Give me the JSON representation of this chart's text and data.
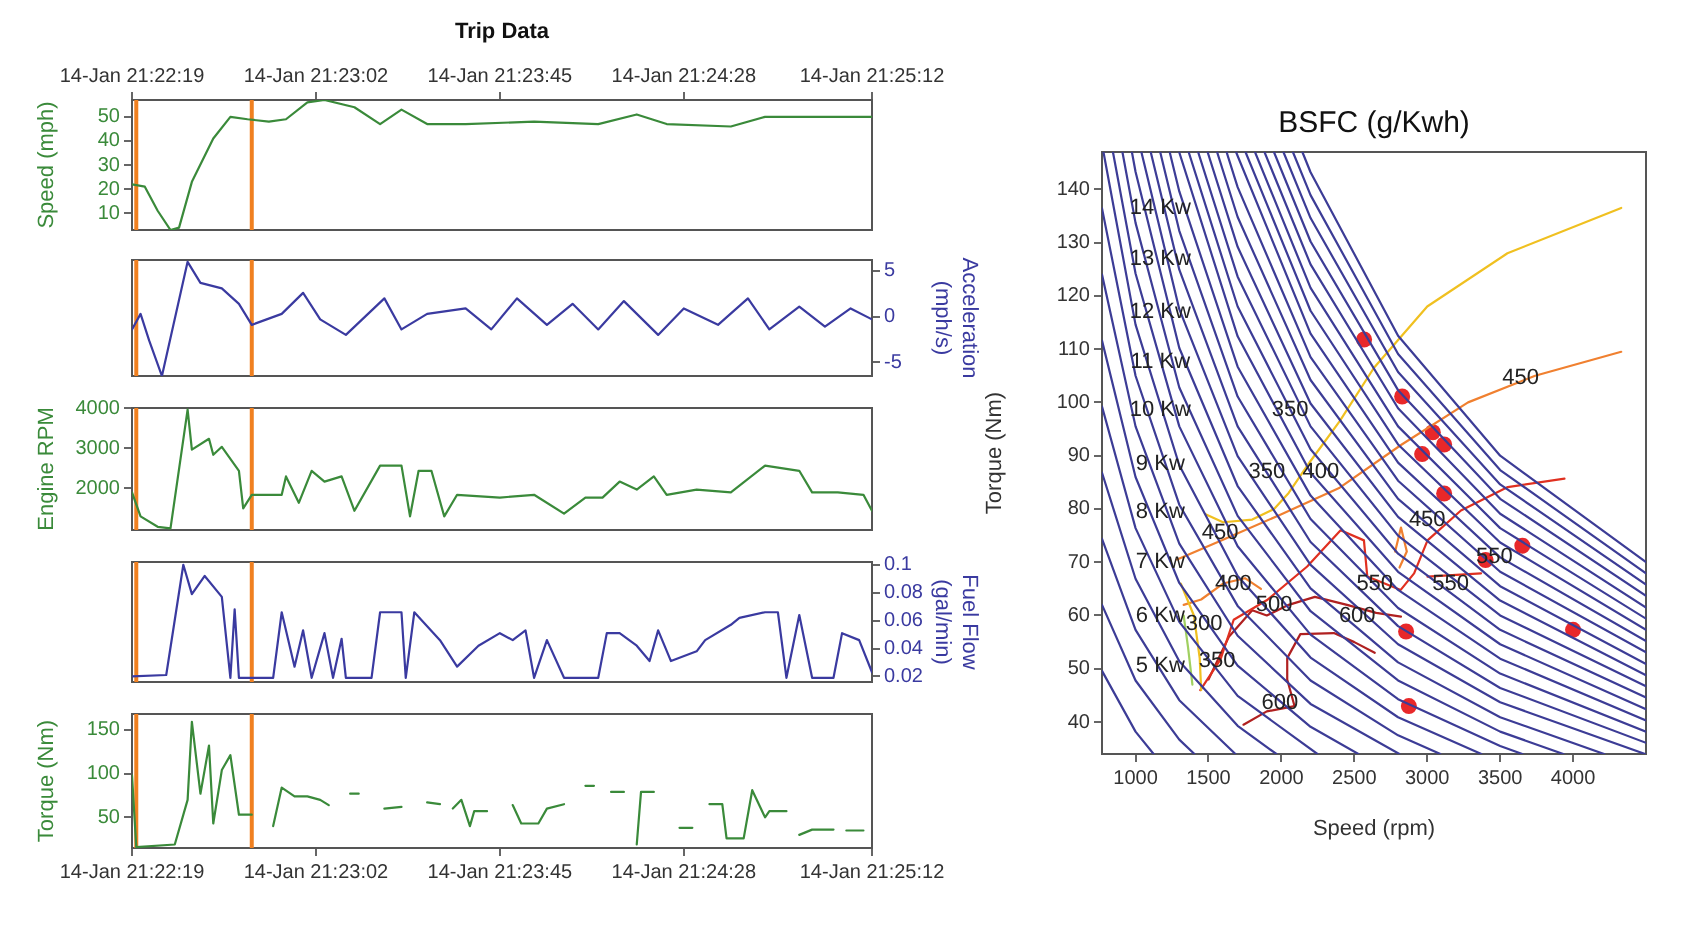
{
  "chart_data": [
    {
      "type": "line",
      "title": "Trip Data",
      "ylabel": "Speed (mph)",
      "xlim": [
        "--01-14T21:22:19",
        "--01-14T21:25:12"
      ],
      "x2lim": [
        "--01-14T21:22:19",
        "--01-14T21:25:12"
      ],
      "x2ticks": [
        {
          "value": "--01-14T21:22:19",
          "label": "14-Jan 21:22:19"
        },
        {
          "value": "--01-14T21:23:02",
          "label": "14-Jan 21:23:02"
        },
        {
          "value": "--01-14T21:23:45",
          "label": "14-Jan 21:23:45"
        },
        {
          "value": "--01-14T21:24:28",
          "label": "14-Jan 21:24:28"
        },
        {
          "value": "--01-14T21:25:12",
          "label": "14-Jan 21:25:12"
        }
      ],
      "ylim": [
        3,
        57
      ],
      "yticks": [
        10,
        20,
        30,
        40,
        50
      ],
      "ref_lines": [
        {
          "axis": "x",
          "value": "--01-14T21:22:20",
          "color": "#f08020"
        },
        {
          "axis": "x",
          "value": "--01-14T21:22:47",
          "color": "#f08020"
        }
      ],
      "x": [
        "--01-14T21:22:19",
        "--01-14T21:22:22",
        "--01-14T21:22:25",
        "--01-14T21:22:28",
        "--01-14T21:22:30",
        "--01-14T21:22:33",
        "--01-14T21:22:38",
        "--01-14T21:22:42",
        "--01-14T21:22:46",
        "--01-14T21:22:51",
        "--01-14T21:22:55",
        "--01-14T21:23:00",
        "--01-14T21:23:04",
        "--01-14T21:23:11",
        "--01-14T21:23:17",
        "--01-14T21:23:22",
        "--01-14T21:23:28",
        "--01-14T21:23:37",
        "--01-14T21:23:53",
        "--01-14T21:24:08",
        "--01-14T21:24:17",
        "--01-14T21:24:24",
        "--01-14T21:24:39",
        "--01-14T21:24:47",
        "--01-14T21:24:55",
        "--01-14T21:25:02",
        "--01-14T21:25:12"
      ],
      "series": [
        {
          "color": "#3a8a3a",
          "values": [
            22,
            21,
            11,
            3,
            4,
            23,
            41,
            50,
            49,
            48,
            49,
            56,
            57,
            54,
            47,
            53,
            47,
            47,
            48,
            47,
            51,
            47,
            46,
            50,
            50,
            50,
            50
          ]
        }
      ]
    },
    {
      "type": "line",
      "y2label": "Acceleration (mph/s)",
      "xlim": [
        "--01-14T21:22:19",
        "--01-14T21:25:12"
      ],
      "tick_labels": "y",
      "y2lim": [
        -6.5,
        6.2
      ],
      "y2ticks": [
        -5,
        0,
        5
      ],
      "ref_lines": [
        {
          "axis": "x",
          "value": "--01-14T21:22:20",
          "color": "#f08020"
        },
        {
          "axis": "x",
          "value": "--01-14T21:22:47",
          "color": "#f08020"
        }
      ],
      "x": [
        "--01-14T21:22:19",
        "--01-14T21:22:21",
        "--01-14T21:22:23",
        "--01-14T21:22:26",
        "--01-14T21:22:32",
        "--01-14T21:22:35",
        "--01-14T21:22:40",
        "--01-14T21:22:44",
        "--01-14T21:22:47",
        "--01-14T21:22:54",
        "--01-14T21:22:59",
        "--01-14T21:23:03",
        "--01-14T21:23:09",
        "--01-14T21:23:18",
        "--01-14T21:23:22",
        "--01-14T21:23:28",
        "--01-14T21:23:37",
        "--01-14T21:23:43",
        "--01-14T21:23:49",
        "--01-14T21:23:56",
        "--01-14T21:24:02",
        "--01-14T21:24:08",
        "--01-14T21:24:14",
        "--01-14T21:24:22",
        "--01-14T21:24:28",
        "--01-14T21:24:36",
        "--01-14T21:24:43",
        "--01-14T21:24:48",
        "--01-14T21:24:55",
        "--01-14T21:25:01",
        "--01-14T21:25:07",
        "--01-14T21:25:12"
      ],
      "series": [
        {
          "color": "#3a3aa0",
          "axis": "y2",
          "values": [
            -1.4,
            0.3,
            -2.6,
            -6.5,
            6.0,
            3.7,
            3.1,
            1.4,
            -0.9,
            0.3,
            2.6,
            -0.3,
            -2.0,
            2.0,
            -1.4,
            0.3,
            0.9,
            -1.4,
            2.0,
            -0.9,
            1.4,
            -1.4,
            1.7,
            -2.0,
            0.9,
            -0.9,
            2.0,
            -1.4,
            1.1,
            -1.1,
            0.9,
            -0.3
          ]
        }
      ]
    },
    {
      "type": "line",
      "ylabel": "Engine RPM",
      "xlim": [
        "--01-14T21:22:19",
        "--01-14T21:25:12"
      ],
      "tick_labels": "y",
      "ylim": [
        950,
        4000
      ],
      "yticks": [
        2000,
        3000,
        4000
      ],
      "ref_lines": [
        {
          "axis": "x",
          "value": "--01-14T21:22:20",
          "color": "#f08020"
        },
        {
          "axis": "x",
          "value": "--01-14T21:22:47",
          "color": "#f08020"
        }
      ],
      "x": [
        "--01-14T21:22:19",
        "--01-14T21:22:21",
        "--01-14T21:22:25",
        "--01-14T21:22:28",
        "--01-14T21:22:32",
        "--01-14T21:22:33",
        "--01-14T21:22:37",
        "--01-14T21:22:38",
        "--01-14T21:22:40",
        "--01-14T21:22:44",
        "--01-14T21:22:45",
        "--01-14T21:22:47",
        "--01-14T21:22:48",
        "--01-14T21:22:54",
        "--01-14T21:22:55",
        "--01-14T21:22:58",
        "--01-14T21:23:01",
        "--01-14T21:23:04",
        "--01-14T21:23:08",
        "--01-14T21:23:11",
        "--01-14T21:23:17",
        "--01-14T21:23:22",
        "--01-14T21:23:24",
        "--01-14T21:23:26",
        "--01-14T21:23:29",
        "--01-14T21:23:32",
        "--01-14T21:23:35",
        "--01-14T21:23:45",
        "--01-14T21:23:53",
        "--01-14T21:24:00",
        "--01-14T21:24:05",
        "--01-14T21:24:09",
        "--01-14T21:24:13",
        "--01-14T21:24:17",
        "--01-14T21:24:21",
        "--01-14T21:24:24",
        "--01-14T21:24:31",
        "--01-14T21:24:39",
        "--01-14T21:24:47",
        "--01-14T21:24:55",
        "--01-14T21:24:58",
        "--01-14T21:25:04",
        "--01-14T21:25:10",
        "--01-14T21:25:12"
      ],
      "series": [
        {
          "color": "#3a8a3a",
          "values": [
            1890,
            1290,
            1030,
            990,
            3960,
            2960,
            3230,
            2830,
            3030,
            2430,
            1490,
            1830,
            1830,
            1830,
            2290,
            1630,
            2430,
            2160,
            2290,
            1430,
            2560,
            2560,
            1290,
            2430,
            2430,
            1290,
            1830,
            1760,
            1830,
            1360,
            1760,
            1760,
            2160,
            1960,
            2290,
            1830,
            1960,
            1890,
            2560,
            2430,
            1890,
            1890,
            1830,
            1430
          ]
        }
      ]
    },
    {
      "type": "line",
      "y2label": "Fuel Flow (gal/min)",
      "xlim": [
        "--01-14T21:22:19",
        "--01-14T21:25:12"
      ],
      "tick_labels": "y",
      "y2lim": [
        0.016,
        0.102
      ],
      "y2ticks": [
        0.02,
        0.04,
        0.06,
        0.08,
        0.1
      ],
      "ref_lines": [
        {
          "axis": "x",
          "value": "--01-14T21:22:20",
          "color": "#f08020"
        },
        {
          "axis": "x",
          "value": "--01-14T21:22:47",
          "color": "#f08020"
        }
      ],
      "x": [
        "--01-14T21:22:19",
        "--01-14T21:22:27",
        "--01-14T21:22:31",
        "--01-14T21:22:33",
        "--01-14T21:22:36",
        "--01-14T21:22:40",
        "--01-14T21:22:42",
        "--01-14T21:22:43",
        "--01-14T21:22:44",
        "--01-14T21:22:52",
        "--01-14T21:22:54",
        "--01-14T21:22:57",
        "--01-14T21:22:59",
        "--01-14T21:23:01",
        "--01-14T21:23:04",
        "--01-14T21:23:06",
        "--01-14T21:23:08",
        "--01-14T21:23:09",
        "--01-14T21:23:15",
        "--01-14T21:23:17",
        "--01-14T21:23:22",
        "--01-14T21:23:23",
        "--01-14T21:23:25",
        "--01-14T21:23:31",
        "--01-14T21:23:35",
        "--01-14T21:23:40",
        "--01-14T21:23:45",
        "--01-14T21:23:48",
        "--01-14T21:23:51",
        "--01-14T21:23:53",
        "--01-14T21:23:56",
        "--01-14T21:24:00",
        "--01-14T21:24:08",
        "--01-14T21:24:10",
        "--01-14T21:24:13",
        "--01-14T21:24:17",
        "--01-14T21:24:20",
        "--01-14T21:24:22",
        "--01-14T21:24:25",
        "--01-14T21:24:31",
        "--01-14T21:24:33",
        "--01-14T21:24:39",
        "--01-14T21:24:41",
        "--01-14T21:24:47",
        "--01-14T21:24:50",
        "--01-14T21:24:52",
        "--01-14T21:24:55",
        "--01-14T21:24:58",
        "--01-14T21:25:03",
        "--01-14T21:25:05",
        "--01-14T21:25:09",
        "--01-14T21:25:12"
      ],
      "series": [
        {
          "color": "#3a3aa0",
          "axis": "y2",
          "values": [
            0.02,
            0.021,
            0.1,
            0.079,
            0.092,
            0.077,
            0.019,
            0.068,
            0.019,
            0.019,
            0.066,
            0.027,
            0.053,
            0.019,
            0.051,
            0.019,
            0.047,
            0.019,
            0.019,
            0.066,
            0.066,
            0.019,
            0.066,
            0.046,
            0.027,
            0.042,
            0.051,
            0.046,
            0.053,
            0.019,
            0.046,
            0.019,
            0.019,
            0.051,
            0.051,
            0.042,
            0.031,
            0.053,
            0.031,
            0.038,
            0.046,
            0.057,
            0.062,
            0.066,
            0.066,
            0.019,
            0.064,
            0.019,
            0.019,
            0.051,
            0.046,
            0.023
          ]
        }
      ]
    },
    {
      "type": "line",
      "ylabel": "Torque (Nm)",
      "xlim": [
        "--01-14T21:22:19",
        "--01-14T21:25:12"
      ],
      "xticks": [
        {
          "value": "--01-14T21:22:19",
          "label": "14-Jan 21:22:19"
        },
        {
          "value": "--01-14T21:23:02",
          "label": "14-Jan 21:23:02"
        },
        {
          "value": "--01-14T21:23:45",
          "label": "14-Jan 21:23:45"
        },
        {
          "value": "--01-14T21:24:28",
          "label": "14-Jan 21:24:28"
        },
        {
          "value": "--01-14T21:25:12",
          "label": "14-Jan 21:25:12"
        }
      ],
      "ylim": [
        15,
        168
      ],
      "yticks": [
        50,
        100,
        150
      ],
      "ref_lines": [
        {
          "axis": "x",
          "value": "--01-14T21:22:20",
          "color": "#f08020"
        },
        {
          "axis": "x",
          "value": "--01-14T21:22:47",
          "color": "#f08020"
        }
      ],
      "x": [
        "--01-14T21:22:19",
        "--01-14T21:22:20",
        "--01-14T21:22:29",
        "--01-14T21:22:32",
        "--01-14T21:22:33",
        "--01-14T21:22:35",
        "--01-14T21:22:37",
        "--01-14T21:22:38",
        "--01-14T21:22:40",
        "--01-14T21:22:42",
        "--01-14T21:22:44",
        "--01-14T21:22:47",
        "--01-14T21:22:49",
        "--01-14T21:22:52",
        "--01-14T21:22:54",
        "--01-14T21:22:57",
        "--01-14T21:23:00",
        "--01-14T21:23:03",
        "--01-14T21:23:05",
        "--01-14T21:23:08",
        "--01-14T21:23:10",
        "--01-14T21:23:12",
        "--01-14T21:23:15",
        "--01-14T21:23:18",
        "--01-14T21:23:22",
        "--01-14T21:23:25",
        "--01-14T21:23:28",
        "--01-14T21:23:31",
        "--01-14T21:23:32",
        "--01-14T21:23:34",
        "--01-14T21:23:36",
        "--01-14T21:23:38",
        "--01-14T21:23:39",
        "--01-14T21:23:42",
        "--01-14T21:23:45",
        "--01-14T21:23:48",
        "--01-14T21:23:50",
        "--01-14T21:23:54",
        "--01-14T21:23:56",
        "--01-14T21:24:00",
        "--01-14T21:24:03",
        "--01-14T21:24:05",
        "--01-14T21:24:07",
        "--01-14T21:24:09",
        "--01-14T21:24:11",
        "--01-14T21:24:14",
        "--01-14T21:24:16",
        "--01-14T21:24:17",
        "--01-14T21:24:18",
        "--01-14T21:24:21",
        "--01-14T21:24:25",
        "--01-14T21:24:27",
        "--01-14T21:24:30",
        "--01-14T21:24:31",
        "--01-14T21:24:34",
        "--01-14T21:24:37",
        "--01-14T21:24:38",
        "--01-14T21:24:42",
        "--01-14T21:24:44",
        "--01-14T21:24:47",
        "--01-14T21:24:48",
        "--01-14T21:24:52",
        "--01-14T21:24:53",
        "--01-14T21:24:55",
        "--01-14T21:24:58",
        "--01-14T21:25:03",
        "--01-14T21:25:05",
        "--01-14T21:25:06",
        "--01-14T21:25:10"
      ],
      "series": [
        {
          "color": "#3a8a3a",
          "values": [
            98,
            16,
            19,
            70,
            159,
            77,
            132,
            43,
            104,
            121,
            53,
            53,
            null,
            40,
            84,
            74,
            74,
            70,
            64,
            null,
            77,
            77,
            null,
            60,
            62,
            null,
            67,
            65,
            null,
            60,
            70,
            40,
            57,
            57,
            null,
            64,
            43,
            43,
            60,
            65,
            null,
            86,
            86,
            null,
            79,
            79,
            null,
            19,
            79,
            79,
            null,
            38,
            38,
            null,
            65,
            65,
            26,
            26,
            81,
            50,
            57,
            57,
            null,
            30,
            36,
            36,
            null,
            35,
            35
          ]
        }
      ]
    },
    {
      "type": "line",
      "title": "BSFC (g/Kwh)",
      "xlabel": "Speed (rpm)",
      "ylabel": "Torque (Nm)",
      "xlim": [
        770,
        4500
      ],
      "xticks": [
        1000,
        1500,
        2000,
        2500,
        3000,
        3500,
        4000
      ],
      "ylim": [
        34,
        147
      ],
      "yticks": [
        40,
        50,
        60,
        70,
        80,
        90,
        100,
        110,
        120,
        130,
        140
      ],
      "series": [
        {
          "color": "#3c3c96",
          "x": [
            770,
            1000,
            1124
          ],
          "values": [
            49.6,
            38.2,
            34
          ]
        },
        {
          "color": "#3c3c96",
          "x": [
            770,
            1000,
            1300,
            1404
          ],
          "values": [
            62,
            47.8,
            36.7,
            34
          ]
        },
        {
          "color": "#3c3c96",
          "x": [
            770,
            1000,
            1300,
            1685
          ],
          "values": [
            74.4,
            57.3,
            44.1,
            34
          ]
        },
        {
          "color": "#3c3c96",
          "x": [
            770,
            1000,
            1300,
            1700,
            1966
          ],
          "values": [
            86.8,
            66.9,
            51.4,
            39.3,
            34
          ]
        },
        {
          "color": "#3c3c96",
          "x": [
            770,
            1000,
            1300,
            1700,
            2247
          ],
          "values": [
            99.2,
            76.4,
            58.8,
            44.9,
            34
          ]
        },
        {
          "color": "#3c3c96",
          "x": [
            770,
            1000,
            1300,
            1700,
            2200,
            2528
          ],
          "values": [
            111.6,
            86,
            66.1,
            50.6,
            39.1,
            34
          ]
        },
        {
          "color": "#3c3c96",
          "x": [
            770,
            1000,
            1300,
            1700,
            2200,
            2809
          ],
          "values": [
            124,
            95.5,
            73.5,
            56.2,
            43.4,
            34
          ]
        },
        {
          "color": "#3c3c96",
          "x": [
            770,
            1000,
            1300,
            1700,
            2200,
            2800,
            3090
          ],
          "values": [
            136.4,
            105,
            80.8,
            61.8,
            47.8,
            37.5,
            34
          ]
        },
        {
          "color": "#3c3c96",
          "x": [
            780,
            1000,
            1300,
            1700,
            2200,
            2800,
            3371
          ],
          "values": [
            147,
            114.6,
            88.2,
            67.4,
            52.1,
            40.9,
            34
          ]
        },
        {
          "color": "#3c3c96",
          "x": [
            845,
            1000,
            1300,
            1700,
            2200,
            2800,
            3500,
            3652
          ],
          "values": [
            147,
            124.2,
            95.5,
            73,
            56.4,
            44.3,
            35.5,
            34
          ]
        },
        {
          "color": "#3c3c96",
          "x": [
            910,
            1000,
            1300,
            1700,
            2200,
            2800,
            3500,
            3933
          ],
          "values": [
            147,
            133.7,
            102.8,
            78.7,
            60.8,
            47.8,
            38.2,
            34
          ]
        },
        {
          "color": "#3c3c96",
          "x": [
            975,
            1000,
            1300,
            1700,
            2200,
            2800,
            3500,
            4213
          ],
          "values": [
            147,
            143.3,
            110.2,
            84.3,
            65.1,
            51.2,
            40.9,
            34
          ]
        },
        {
          "color": "#3c3c96",
          "x": [
            1040,
            1300,
            1700,
            2200,
            2800,
            3500,
            4494
          ],
          "values": [
            147,
            117.5,
            89.9,
            69.5,
            54.6,
            43.7,
            34
          ]
        },
        {
          "color": "#3c3c96",
          "x": [
            1104,
            1300,
            1700,
            2200,
            2800,
            3500,
            4500
          ],
          "values": [
            147,
            124.9,
            95.5,
            73.8,
            58,
            46.4,
            36.1
          ]
        },
        {
          "color": "#3c3c96",
          "x": [
            1169,
            1300,
            1700,
            2200,
            2800,
            3500,
            4500
          ],
          "values": [
            147,
            132.2,
            101.1,
            78.1,
            61.4,
            49.1,
            38.2
          ]
        },
        {
          "color": "#3c3c96",
          "x": [
            1234,
            1300,
            1700,
            2200,
            2800,
            3500,
            4500
          ],
          "values": [
            147,
            139.6,
            106.7,
            82.5,
            64.8,
            51.9,
            40.3
          ]
        },
        {
          "color": "#3c3c96",
          "x": [
            1299,
            1700,
            2200,
            2800,
            3500,
            4500
          ],
          "values": [
            147,
            112.4,
            86.8,
            68.2,
            54.6,
            42.4
          ]
        },
        {
          "color": "#3c3c96",
          "x": [
            1364,
            1700,
            2200,
            2800,
            3500,
            4500
          ],
          "values": [
            147,
            118,
            91.2,
            71.6,
            57.3,
            44.6
          ]
        },
        {
          "color": "#3c3c96",
          "x": [
            1429,
            1700,
            2200,
            2800,
            3500,
            4500
          ],
          "values": [
            147,
            123.6,
            95.5,
            75,
            60,
            46.7
          ]
        },
        {
          "color": "#3c3c96",
          "x": [
            1494,
            1700,
            2200,
            2800,
            3500,
            4500
          ],
          "values": [
            147,
            129.2,
            99.8,
            78.5,
            62.8,
            48.8
          ]
        },
        {
          "color": "#3c3c96",
          "x": [
            1559,
            1700,
            2200,
            2800,
            3500,
            4500
          ],
          "values": [
            147,
            134.8,
            104.2,
            81.9,
            65.5,
            50.9
          ]
        },
        {
          "color": "#3c3c96",
          "x": [
            1624,
            1700,
            2200,
            2800,
            3500,
            4500
          ],
          "values": [
            147,
            140.4,
            108.5,
            85.3,
            68.2,
            53.1
          ]
        },
        {
          "color": "#3c3c96",
          "x": [
            1689,
            2200,
            2800,
            3500,
            4500
          ],
          "values": [
            147,
            112.9,
            88.7,
            70.9,
            55.2
          ]
        },
        {
          "color": "#3c3c96",
          "x": [
            1754,
            2200,
            2800,
            3500,
            4500
          ],
          "values": [
            147,
            117.2,
            92.1,
            73.7,
            57.3
          ]
        },
        {
          "color": "#3c3c96",
          "x": [
            1819,
            2200,
            2800,
            3500,
            4500
          ],
          "values": [
            147,
            121.5,
            95.5,
            76.4,
            59.4
          ]
        },
        {
          "color": "#3c3c96",
          "x": [
            1884,
            2200,
            2800,
            3500,
            4500
          ],
          "values": [
            147,
            125.9,
            98.9,
            79.1,
            61.5
          ]
        },
        {
          "color": "#3c3c96",
          "x": [
            1949,
            2200,
            2800,
            3500,
            4500
          ],
          "values": [
            147,
            130.2,
            102.3,
            81.9,
            63.7
          ]
        },
        {
          "color": "#3c3c96",
          "x": [
            2014,
            2200,
            2800,
            3500,
            4500
          ],
          "values": [
            147,
            134.6,
            105.7,
            84.6,
            65.8
          ]
        },
        {
          "color": "#3c3c96",
          "x": [
            2079,
            2200,
            2800,
            3500,
            4500
          ],
          "values": [
            147,
            138.9,
            109.1,
            87.3,
            67.9
          ]
        },
        {
          "color": "#3c3c96",
          "x": [
            2144,
            2200,
            2800,
            3500,
            4500
          ],
          "values": [
            147,
            143.2,
            112.5,
            90,
            70
          ]
        },
        {
          "color": "#f0c020",
          "x": [
            1480,
            1600,
            1800,
            1950,
            2050,
            2200,
            2400,
            2635,
            3000,
            3550,
            4330
          ],
          "values": [
            79,
            77.5,
            78,
            80,
            83,
            89,
            96.5,
            106.5,
            118,
            128,
            136.5
          ]
        },
        {
          "color": "#f0c020",
          "x": [
            1310,
            1400,
            1440,
            1450
          ],
          "values": [
            66,
            60,
            52,
            46
          ]
        },
        {
          "color": "#a0d060",
          "x": [
            1330,
            1360,
            1390
          ],
          "values": [
            60,
            54,
            47
          ]
        },
        {
          "color": "#f08030",
          "x": [
            1285,
            1580,
            2000,
            2400,
            2820,
            3280,
            3740,
            4330
          ],
          "values": [
            70.5,
            74,
            79,
            84,
            92,
            100,
            105,
            109.5
          ]
        },
        {
          "color": "#f08030",
          "x": [
            1330,
            1450,
            1600,
            1750,
            1860
          ],
          "values": [
            62,
            63,
            66,
            67,
            65
          ]
        },
        {
          "color": "#f08030",
          "x": [
            2780,
            2820,
            2860,
            2810
          ],
          "values": [
            72,
            76.5,
            72,
            69
          ]
        },
        {
          "color": "#e03020",
          "x": [
            1444,
            1582,
            1673,
            1902,
            2177,
            2406,
            2566,
            2589,
            2818,
            2910,
            3002,
            3231,
            3552,
            3941
          ],
          "values": [
            46,
            51.7,
            59.2,
            62.9,
            69.2,
            76,
            74.1,
            67.3,
            64.8,
            67.9,
            74.1,
            79.7,
            84.1,
            85.7
          ]
        },
        {
          "color": "#e03020",
          "x": [
            3002,
            3369
          ],
          "values": [
            67.3,
            67.9
          ]
        },
        {
          "color": "#b02020",
          "x": [
            1500,
            1640,
            1800,
            1900,
            2050,
            2230,
            2450,
            2650,
            2820
          ],
          "values": [
            48,
            56,
            61,
            60,
            62,
            63.5,
            62,
            60.5,
            59.8
          ]
        },
        {
          "color": "#b02020",
          "x": [
            1740,
            1900,
            2090,
            2040,
            2040,
            2130,
            2360,
            2500,
            2640
          ],
          "values": [
            39.5,
            42,
            43,
            48,
            52,
            56.5,
            56.7,
            55,
            53
          ]
        },
        {
          "type": "scatter",
          "marker": "circle",
          "color": "#e8282a",
          "x": [
            2567,
            2828,
            3038,
            3116,
            2965,
            3116,
            3400,
            3652,
            2855,
            2874,
            4000
          ],
          "values": [
            111.8,
            101.1,
            94.4,
            92.1,
            90.3,
            82.9,
            70.4,
            73.1,
            57,
            43,
            57.3
          ]
        }
      ],
      "annotations": [
        {
          "text": "14 Kw",
          "x": 1170,
          "y": 136.5
        },
        {
          "text": "13 Kw",
          "x": 1170,
          "y": 127
        },
        {
          "text": "12 Kw",
          "x": 1170,
          "y": 117
        },
        {
          "text": "11 Kw",
          "x": 1170,
          "y": 107.5
        },
        {
          "text": "10 Kw",
          "x": 1170,
          "y": 98.5
        },
        {
          "text": "9 Kw",
          "x": 1170,
          "y": 88.5
        },
        {
          "text": "8 Kw",
          "x": 1170,
          "y": 79.5
        },
        {
          "text": "7 Kw",
          "x": 1170,
          "y": 70
        },
        {
          "text": "6 Kw",
          "x": 1170,
          "y": 60
        },
        {
          "text": "5 Kw",
          "x": 1170,
          "y": 50.5
        },
        {
          "text": "350",
          "x": 2060,
          "y": 98.5
        },
        {
          "text": "350",
          "x": 1900,
          "y": 87
        },
        {
          "text": "400",
          "x": 2270,
          "y": 87
        },
        {
          "text": "450",
          "x": 3640,
          "y": 104.5
        },
        {
          "text": "450",
          "x": 1580,
          "y": 75.5
        },
        {
          "text": "450",
          "x": 3000,
          "y": 78
        },
        {
          "text": "400",
          "x": 1670,
          "y": 66
        },
        {
          "text": "500",
          "x": 1950,
          "y": 62
        },
        {
          "text": "550",
          "x": 2640,
          "y": 66
        },
        {
          "text": "550",
          "x": 3160,
          "y": 66
        },
        {
          "text": "550",
          "x": 3460,
          "y": 71
        },
        {
          "text": "600",
          "x": 2520,
          "y": 60
        },
        {
          "text": "300",
          "x": 1470,
          "y": 58.5
        },
        {
          "text": "350",
          "x": 1560,
          "y": 51.5
        },
        {
          "text": "600",
          "x": 1990,
          "y": 43.5
        }
      ]
    }
  ]
}
